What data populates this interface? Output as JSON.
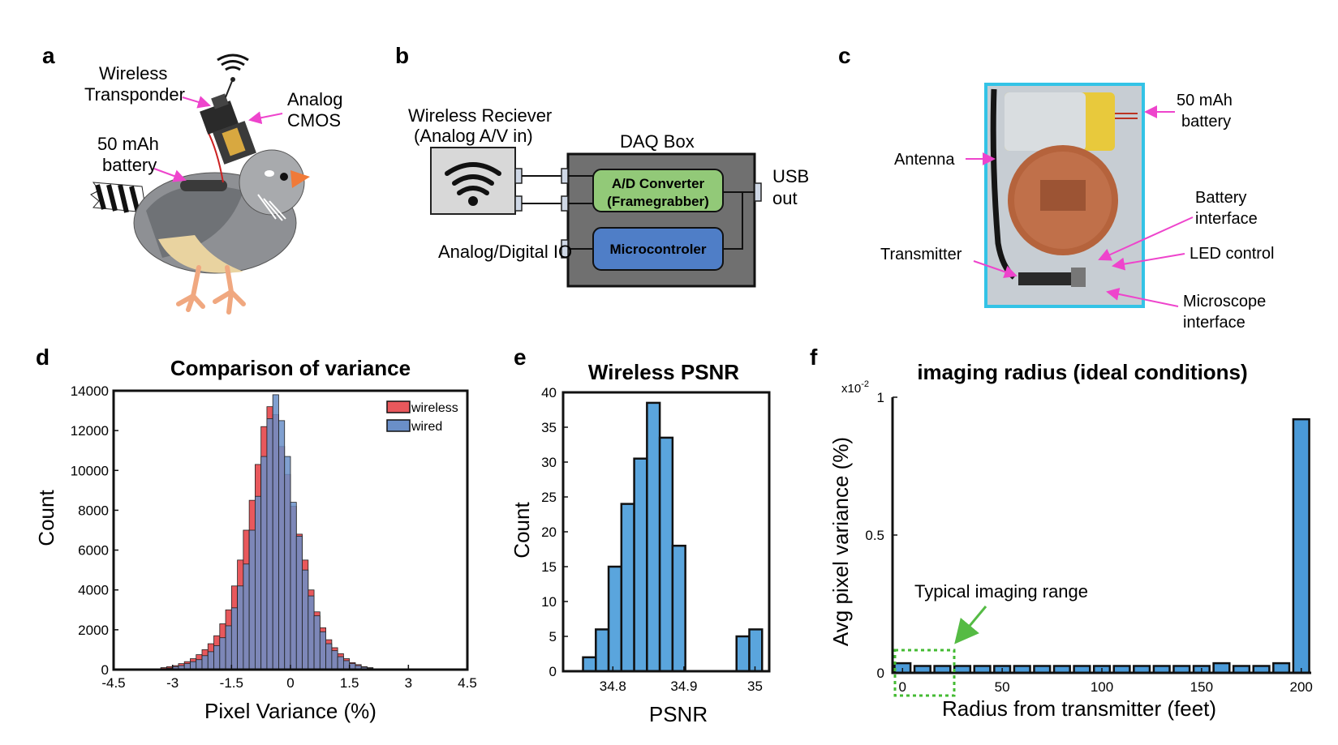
{
  "panels": {
    "a": {
      "letter": "a",
      "labels": {
        "transponder_1": "Wireless",
        "transponder_2": "Transponder",
        "cmos_1": "Analog",
        "cmos_2": "CMOS",
        "battery_1": "50 mAh",
        "battery_2": "battery"
      }
    },
    "b": {
      "letter": "b",
      "receiver_1": "Wireless Reciever",
      "receiver_2": "(Analog A/V in)",
      "daq_title": "DAQ Box",
      "adc_1": "A/D Converter",
      "adc_2": "(Framegrabber)",
      "micro": "Microcontroler",
      "usb_1": "USB",
      "usb_2": "out",
      "io": "Analog/Digital IO"
    },
    "c": {
      "letter": "c",
      "battery_1": "50 mAh",
      "battery_2": "battery",
      "antenna": "Antenna",
      "transmitter": "Transmitter",
      "battery_iface_1": "Battery",
      "battery_iface_2": "interface",
      "led": "LED control",
      "microscope_1": "Microscope",
      "microscope_2": "interface"
    },
    "d": {
      "letter": "d"
    },
    "e": {
      "letter": "e"
    },
    "f": {
      "letter": "f",
      "annotation": "Typical imaging range",
      "exponent_base": "x10",
      "exponent_power": "-2"
    }
  },
  "colors": {
    "pink_arrow": "#ee44cc",
    "wireless": "#e8585c",
    "wired": "#6a8fc8",
    "overlap": "#6a5a8c",
    "psnr_bar": "#5aa5dd",
    "radius_bar": "#4a9ad8",
    "green_dotted": "#44bb33",
    "photo_border": "#33c3e6",
    "adc_fill": "#92c978",
    "micro_fill": "#4f7ec7",
    "daq_fill": "#707070",
    "receiver_fill": "#d8d8d8"
  },
  "chart_data": [
    {
      "type": "bar",
      "title": "Comparison of variance",
      "xlabel": "Pixel Variance (%)",
      "ylabel": "Count",
      "xlim": [
        -4.5,
        4.5
      ],
      "ylim": [
        0,
        14000
      ],
      "xticks": [
        "-4.5",
        "-3",
        "-1.5",
        "0",
        "1.5",
        "3",
        "4.5"
      ],
      "yticks": [
        "0",
        "2000",
        "4000",
        "6000",
        "8000",
        "10000",
        "12000",
        "14000"
      ],
      "legend": "top-right",
      "bin_width": 0.15,
      "bin_start": -3.3,
      "series": [
        {
          "name": "wireless",
          "values": [
            100,
            150,
            200,
            300,
            400,
            550,
            750,
            1000,
            1300,
            1700,
            2300,
            3000,
            4200,
            5500,
            7000,
            8500,
            10300,
            12200,
            13200,
            12800,
            11200,
            9800,
            8200,
            6800,
            5500,
            4000,
            2900,
            2100,
            1500,
            1100,
            800,
            550,
            350,
            250,
            150,
            100
          ]
        },
        {
          "name": "wired",
          "values": [
            50,
            80,
            150,
            200,
            300,
            400,
            500,
            700,
            900,
            1200,
            1600,
            2200,
            3100,
            4200,
            5300,
            7000,
            8700,
            10700,
            12600,
            13800,
            12500,
            10700,
            8400,
            6700,
            5000,
            3700,
            2700,
            1900,
            1300,
            950,
            650,
            450,
            300,
            200,
            120,
            80
          ]
        }
      ]
    },
    {
      "type": "bar",
      "title": "Wireless PSNR",
      "xlabel": "PSNR",
      "ylabel": "Count",
      "xlim": [
        34.73,
        35.02
      ],
      "ylim": [
        0,
        40
      ],
      "xticks": [
        "34.8",
        "34.9",
        "35"
      ],
      "yticks": [
        "0",
        "5",
        "10",
        "15",
        "20",
        "25",
        "30",
        "35",
        "40"
      ],
      "bin_edges": [
        34.74,
        34.758,
        34.776,
        34.794,
        34.812,
        34.83,
        34.848,
        34.866,
        34.884,
        34.902,
        34.92,
        34.938,
        34.956,
        34.974,
        34.992,
        35.01
      ],
      "values": [
        0,
        2,
        6,
        15,
        24,
        30.5,
        38.5,
        33.5,
        18,
        0,
        0,
        0,
        0,
        5,
        6
      ]
    },
    {
      "type": "bar",
      "title": "imaging radius (ideal conditions)",
      "xlabel": "Radius from transmitter  (feet)",
      "ylabel": "Avg pixel variance (%)",
      "xlim": [
        -5,
        205
      ],
      "ylim": [
        0,
        1
      ],
      "xticks": [
        "0",
        "50",
        "100",
        "150",
        "200"
      ],
      "yticks": [
        "0",
        "0.5",
        "1"
      ],
      "categories": [
        0,
        10,
        20,
        30,
        40,
        50,
        60,
        70,
        80,
        90,
        100,
        110,
        120,
        130,
        140,
        150,
        160,
        170,
        180,
        190,
        200
      ],
      "values": [
        0.035,
        0.025,
        0.025,
        0.025,
        0.025,
        0.025,
        0.025,
        0.025,
        0.025,
        0.025,
        0.025,
        0.025,
        0.025,
        0.025,
        0.025,
        0.025,
        0.035,
        0.025,
        0.025,
        0.035,
        0.92
      ]
    }
  ],
  "d_title": "Comparison of variance",
  "e_title": "Wireless PSNR",
  "f_title": "imaging radius (ideal conditions)"
}
